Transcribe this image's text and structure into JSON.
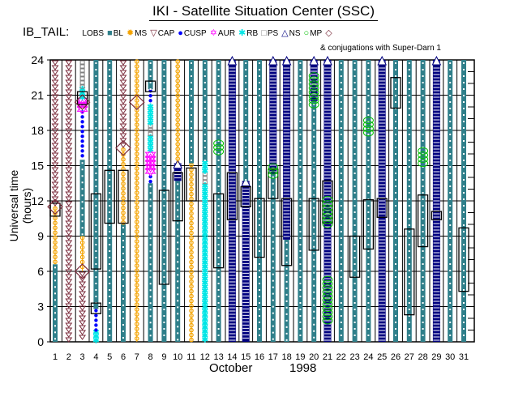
{
  "title": "IKI - Satellite Situation Center (SSC)",
  "legend": {
    "label": "IB_TAIL:",
    "items": [
      {
        "name": "LOBS",
        "color": "#2f7f8a",
        "symbol": "square"
      },
      {
        "name": "BL",
        "color": "#f4a300",
        "symbol": "sun"
      },
      {
        "name": "MS",
        "color": "#7a2a3a",
        "symbol": "triangle-down"
      },
      {
        "name": "CAP",
        "color": "#0000ff",
        "symbol": "dot"
      },
      {
        "name": "CUSP",
        "color": "#ff00ff",
        "symbol": "star"
      },
      {
        "name": "AUR",
        "color": "#00e5e5",
        "symbol": "asterisk"
      },
      {
        "name": "RB",
        "color": "#808080",
        "symbol": "square-open"
      },
      {
        "name": "PS",
        "color": "#000080",
        "symbol": "triangle-up"
      },
      {
        "name": "NS",
        "color": "#00c000",
        "symbol": "circle"
      },
      {
        "name": "MP",
        "color": "#7a2a3a",
        "symbol": "diamond"
      }
    ],
    "conjugation_note": "& conjugations with Super-Darn 1"
  },
  "chart_data": {
    "type": "timeline",
    "title": "IKI - Satellite Situation Center (SSC)",
    "xlabel_month": "October",
    "xlabel_year": "1998",
    "ylabel": "Universal time (hours)",
    "ylim": [
      0,
      24
    ],
    "yticks": [
      0,
      3,
      6,
      9,
      12,
      15,
      18,
      21,
      24
    ],
    "xticks": [
      1,
      2,
      3,
      4,
      5,
      6,
      7,
      8,
      9,
      10,
      11,
      12,
      13,
      14,
      15,
      16,
      17,
      18,
      19,
      20,
      21,
      22,
      23,
      24,
      25,
      26,
      27,
      28,
      29,
      30,
      31
    ],
    "grid": true,
    "region_colors": {
      "LOBS": "#2f7f8a",
      "BL": "#f4a300",
      "MS": "#7a2a3a",
      "CAP": "#0000ff",
      "CUSP": "#ff00ff",
      "AUR": "#00e5e5",
      "RB": "#808080",
      "PS": "#000080",
      "NS": "#00c000"
    },
    "days": [
      {
        "day": 1,
        "segments": [
          [
            "LOBS",
            0,
            6.6
          ],
          [
            "BL",
            6.6,
            11.5
          ],
          [
            "MS",
            11.5,
            24
          ]
        ],
        "mp": [
          11.5
        ],
        "boxes": [
          [
            10.7,
            11.8
          ]
        ]
      },
      {
        "day": 2,
        "segments": [
          [
            "MS",
            0,
            24
          ]
        ],
        "mp": [],
        "boxes": []
      },
      {
        "day": 3,
        "segments": [
          [
            "MS",
            0,
            6
          ],
          [
            "BL",
            6,
            9
          ],
          [
            "LOBS",
            9,
            15.5
          ],
          [
            "CAP",
            15.5,
            19.7
          ],
          [
            "CUSP",
            19.7,
            20.8
          ],
          [
            "AUR",
            20.8,
            21.7
          ],
          [
            "RB",
            21.7,
            24
          ]
        ],
        "mp": [
          6,
          20.4
        ],
        "boxes": [
          [
            20.2,
            21.3
          ]
        ]
      },
      {
        "day": 4,
        "segments": [
          [
            "AUR",
            0,
            1
          ],
          [
            "CAP",
            1,
            2.8
          ],
          [
            "LOBS",
            2.8,
            24
          ]
        ],
        "mp": [],
        "boxes": [
          [
            2.4,
            3.3
          ],
          [
            6.2,
            12.6
          ]
        ]
      },
      {
        "day": 5,
        "segments": [
          [
            "LOBS",
            0,
            24
          ]
        ],
        "mp": [],
        "boxes": [
          [
            10.1,
            14.6
          ]
        ]
      },
      {
        "day": 6,
        "segments": [
          [
            "LOBS",
            0,
            10
          ],
          [
            "BL",
            10,
            16.5
          ],
          [
            "MS",
            16.5,
            24
          ]
        ],
        "mp": [
          16.5
        ],
        "boxes": [
          [
            10.1,
            14.6
          ]
        ]
      },
      {
        "day": 7,
        "segments": [
          [
            "BL",
            0,
            24
          ]
        ],
        "mp": [
          20.4
        ],
        "boxes": []
      },
      {
        "day": 8,
        "segments": [
          [
            "LOBS",
            0,
            13.5
          ],
          [
            "CAP",
            13.5,
            14.2
          ],
          [
            "CUSP",
            14.2,
            16.2
          ],
          [
            "AUR",
            16.2,
            17.6
          ],
          [
            "RB",
            17.6,
            18.6
          ],
          [
            "AUR",
            18.6,
            20.2
          ],
          [
            "CAP",
            20.2,
            21.5
          ],
          [
            "LOBS",
            21.5,
            24
          ]
        ],
        "mp": [],
        "boxes": [
          [
            21.3,
            22.2
          ]
        ]
      },
      {
        "day": 9,
        "segments": [
          [
            "LOBS",
            0,
            24
          ]
        ],
        "mp": [],
        "boxes": [
          [
            4.9,
            12.9
          ]
        ]
      },
      {
        "day": 10,
        "segments": [
          [
            "LOBS",
            0,
            13.7
          ],
          [
            "PS",
            13.7,
            15.2
          ],
          [
            "BL",
            15.2,
            24
          ]
        ],
        "mp": [],
        "boxes": [
          [
            10.3,
            14.4
          ]
        ]
      },
      {
        "day": 11,
        "segments": [
          [
            "BL",
            0,
            15.2
          ],
          [
            "LOBS",
            15.2,
            24
          ]
        ],
        "mp": [],
        "boxes": [
          [
            12,
            14.8
          ]
        ]
      },
      {
        "day": 12,
        "segments": [
          [
            "AUR",
            0,
            13.5
          ],
          [
            "RB",
            13.5,
            14.5
          ],
          [
            "AUR",
            14.5,
            15.4
          ],
          [
            "LOBS",
            15.4,
            24
          ]
        ],
        "mp": [],
        "boxes": []
      },
      {
        "day": 13,
        "segments": [
          [
            "LOBS",
            0,
            24
          ]
        ],
        "mp": [],
        "boxes": [
          [
            6.3,
            12.6
          ]
        ]
      },
      {
        "day": 14,
        "segments": [
          [
            "PS",
            0,
            24
          ]
        ],
        "mp": [],
        "boxes": [
          [
            10.4,
            14.4
          ]
        ]
      },
      {
        "day": 15,
        "segments": [
          [
            "PS",
            0,
            13.7
          ],
          [
            "LOBS",
            13.7,
            24
          ]
        ],
        "mp": [],
        "boxes": [
          [
            11.5,
            13.2
          ]
        ]
      },
      {
        "day": 16,
        "segments": [
          [
            "LOBS",
            0,
            24
          ]
        ],
        "mp": [],
        "boxes": [
          [
            7.2,
            12.2
          ]
        ]
      },
      {
        "day": 17,
        "segments": [
          [
            "LOBS",
            0,
            14.3
          ],
          [
            "PS",
            14.3,
            24
          ]
        ],
        "mp": [],
        "boxes": [
          [
            12.2,
            14.7
          ]
        ]
      },
      {
        "day": 18,
        "segments": [
          [
            "LOBS",
            0,
            8.7
          ],
          [
            "PS",
            8.7,
            24
          ]
        ],
        "mp": [],
        "boxes": [
          [
            6.5,
            12.2
          ]
        ]
      },
      {
        "day": 19,
        "segments": [
          [
            "LOBS",
            0,
            24
          ]
        ],
        "mp": [],
        "boxes": []
      },
      {
        "day": 20,
        "segments": [
          [
            "LOBS",
            0,
            20.5
          ],
          [
            "PS",
            20.5,
            24
          ]
        ],
        "mp": [],
        "boxes": [
          [
            7.8,
            12.2
          ]
        ]
      },
      {
        "day": 21,
        "segments": [
          [
            "PS",
            0,
            24
          ]
        ],
        "mp": [],
        "boxes": [
          [
            10.1,
            13.7
          ]
        ]
      },
      {
        "day": 22,
        "segments": [
          [
            "LOBS",
            0,
            24
          ]
        ],
        "mp": [],
        "boxes": []
      },
      {
        "day": 23,
        "segments": [
          [
            "LOBS",
            0,
            24
          ]
        ],
        "mp": [],
        "boxes": [
          [
            5.5,
            9
          ]
        ]
      },
      {
        "day": 24,
        "segments": [
          [
            "LOBS",
            0,
            24
          ]
        ],
        "mp": [],
        "boxes": [
          [
            7.9,
            12.1
          ]
        ]
      },
      {
        "day": 25,
        "segments": [
          [
            "PS",
            0,
            24
          ]
        ],
        "mp": [],
        "boxes": [
          [
            10.6,
            12.2
          ]
        ]
      },
      {
        "day": 26,
        "segments": [
          [
            "LOBS",
            0,
            24
          ]
        ],
        "mp": [],
        "boxes": [
          [
            19.9,
            22.5
          ]
        ]
      },
      {
        "day": 27,
        "segments": [
          [
            "LOBS",
            0,
            24
          ]
        ],
        "mp": [],
        "boxes": [
          [
            2.3,
            9.6
          ]
        ]
      },
      {
        "day": 28,
        "segments": [
          [
            "LOBS",
            0,
            24
          ]
        ],
        "mp": [],
        "boxes": [
          [
            8.1,
            12.5
          ]
        ]
      },
      {
        "day": 29,
        "segments": [
          [
            "PS",
            0,
            24
          ]
        ],
        "mp": [],
        "boxes": [
          [
            10.4,
            11.1
          ]
        ]
      },
      {
        "day": 30,
        "segments": [
          [
            "LOBS",
            0,
            24
          ]
        ],
        "mp": [],
        "boxes": []
      },
      {
        "day": 31,
        "segments": [
          [
            "LOBS",
            0,
            24
          ]
        ],
        "mp": [],
        "boxes": [
          [
            4.3,
            9.7
          ]
        ]
      }
    ],
    "ns_markers": [
      {
        "day": 13,
        "from": 16.2,
        "to": 17.2
      },
      {
        "day": 17,
        "from": 14.2,
        "to": 15.2
      },
      {
        "day": 20,
        "from": 20.2,
        "to": 23
      },
      {
        "day": 21,
        "from": 10,
        "to": 12.1
      },
      {
        "day": 21,
        "from": 1.8,
        "to": 5.3
      },
      {
        "day": 24,
        "from": 17.8,
        "to": 19.2
      },
      {
        "day": 28,
        "from": 15.2,
        "to": 16.6
      }
    ]
  }
}
